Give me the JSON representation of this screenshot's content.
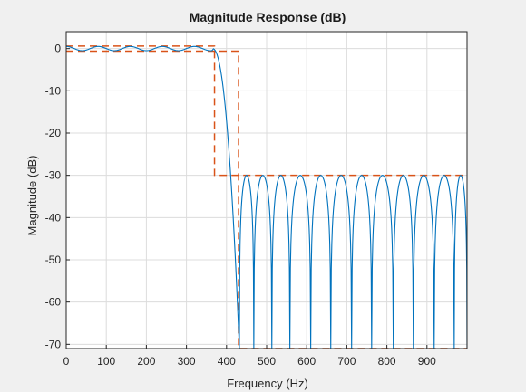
{
  "figure": {
    "background": "#f0f0f0"
  },
  "chart_data": {
    "type": "line",
    "title": "Magnitude Response (dB)",
    "xlabel": "Frequency (Hz)",
    "ylabel": "Magnitude (dB)",
    "xlim": [
      0,
      1000
    ],
    "ylim": [
      -71,
      4
    ],
    "xticks": [
      0,
      100,
      200,
      300,
      400,
      500,
      600,
      700,
      800,
      900
    ],
    "yticks": [
      0,
      -10,
      -20,
      -30,
      -40,
      -50,
      -60,
      -70
    ],
    "grid": true,
    "colors": {
      "response": "#0072bd",
      "mask": "#d95319",
      "axes_bg": "#ffffff",
      "grid": "#dcdcdc"
    },
    "series": [
      {
        "role": "response",
        "passband": {
          "x_end": 365,
          "ripple_db": 0.5,
          "ripple_period_hz": 80
        },
        "transition": {
          "x_start": 365,
          "x_end": 432,
          "y_start": 0,
          "y_end": -71
        },
        "stopband": {
          "lobe_peak_db": -30,
          "nulls_hz": [
            432,
            468,
            513,
            558,
            610,
            660,
            712,
            762,
            816,
            866,
            918,
            968,
            1000
          ]
        }
      },
      {
        "role": "mask-upper",
        "x": [
          0,
          370,
          370,
          430,
          430,
          1000
        ],
        "y": [
          0.6,
          0.6,
          -30,
          -30,
          -30,
          -30
        ]
      },
      {
        "role": "mask-lower",
        "x": [
          0,
          370,
          370,
          430,
          430,
          1000
        ],
        "y": [
          -0.6,
          -0.6,
          -0.6,
          -0.6,
          -71,
          -71
        ]
      }
    ]
  }
}
